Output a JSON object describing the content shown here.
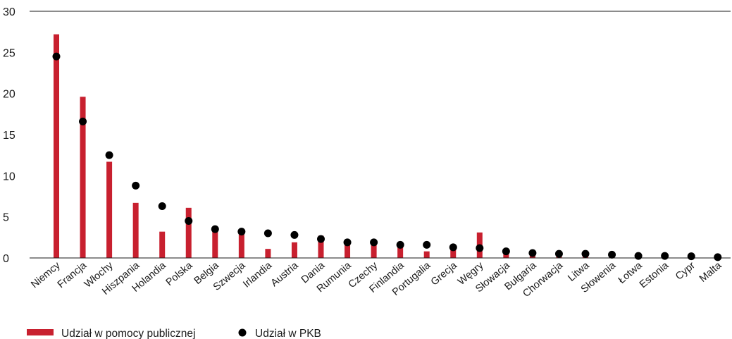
{
  "chart_data": {
    "type": "bar",
    "categories": [
      "Niemcy",
      "Francja",
      "Włochy",
      "Hiszpania",
      "Holandia",
      "Polska",
      "Belgia",
      "Szwecja",
      "Irlandia",
      "Austria",
      "Dania",
      "Rumunia",
      "Czechy",
      "Finlandia",
      "Portugalia",
      "Grecja",
      "Węgry",
      "Słowacja",
      "Bułgaria",
      "Chorwacja",
      "Litwa",
      "Słowenia",
      "Łotwa",
      "Estonia",
      "Cypr",
      "Malta"
    ],
    "series": [
      {
        "name": "Udział w pomocy publicznej",
        "kind": "bar",
        "color": "#c8202f",
        "values": [
          27.2,
          19.6,
          11.7,
          6.7,
          3.2,
          6.1,
          3.6,
          3.0,
          1.1,
          1.9,
          2.7,
          1.8,
          1.9,
          1.5,
          0.8,
          1.2,
          3.1,
          0.6,
          0.4,
          0.3,
          0.2,
          0.3,
          0.2,
          0.1,
          0.1,
          0.1
        ]
      },
      {
        "name": "Udział w PKB",
        "kind": "scatter",
        "color": "#000000",
        "values": [
          24.5,
          16.6,
          12.5,
          8.8,
          6.3,
          4.5,
          3.5,
          3.2,
          3.0,
          2.8,
          2.3,
          1.9,
          1.9,
          1.6,
          1.6,
          1.3,
          1.2,
          0.8,
          0.6,
          0.5,
          0.5,
          0.4,
          0.25,
          0.25,
          0.2,
          0.1
        ]
      }
    ],
    "yticks": [
      "0",
      "5",
      "10",
      "15",
      "20",
      "25",
      "30"
    ],
    "ylim": [
      0,
      30
    ],
    "grid": false,
    "legend_position": "bottom-left"
  }
}
